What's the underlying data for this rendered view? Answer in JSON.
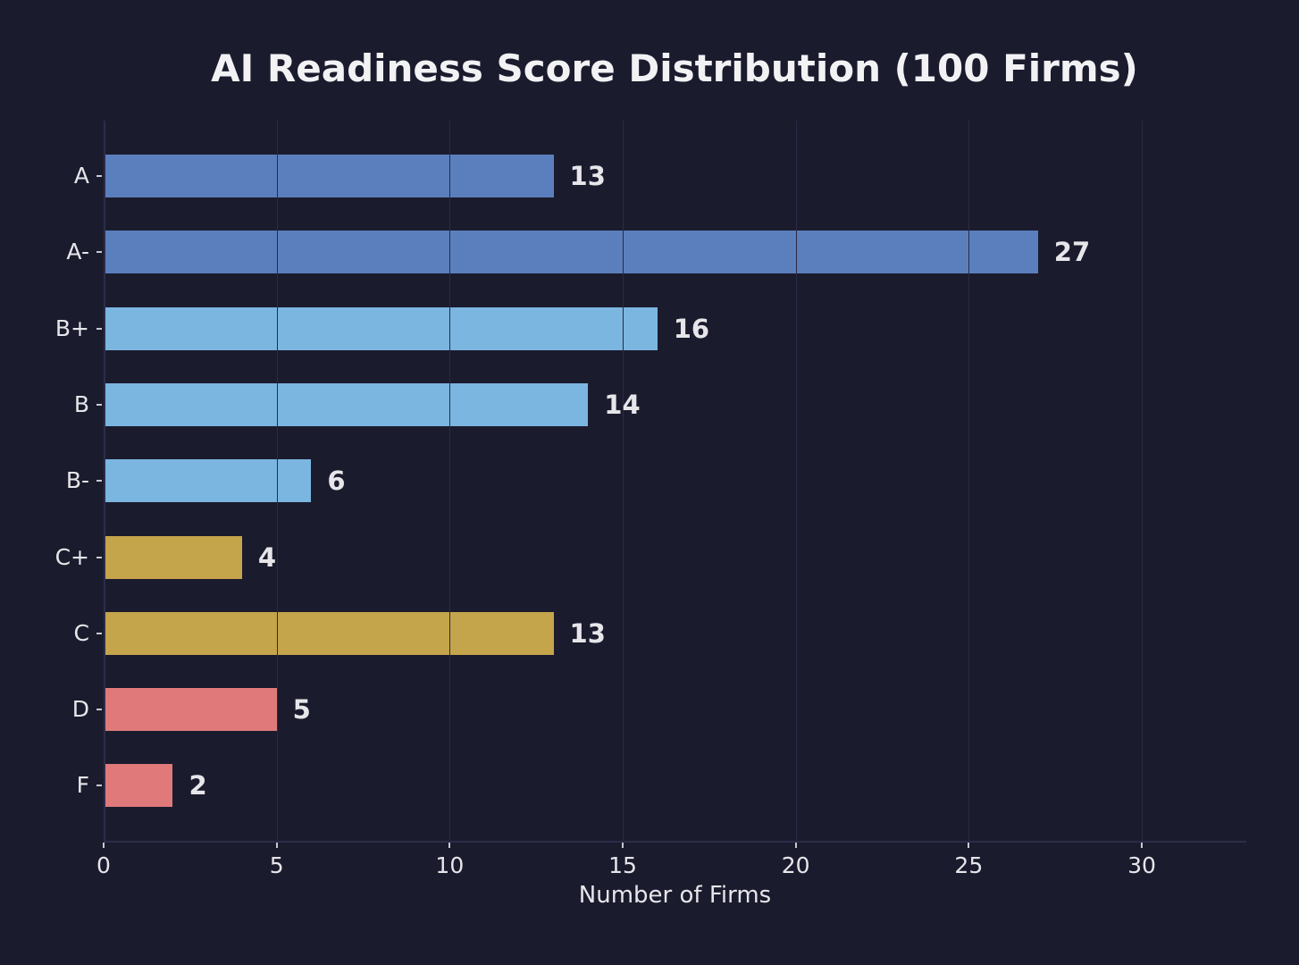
{
  "chart_data": {
    "type": "bar",
    "orientation": "horizontal",
    "title": "AI Readiness Score Distribution (100 Firms)",
    "xlabel": "Number of Firms",
    "ylabel": "",
    "categories": [
      "A",
      "A-",
      "B+",
      "B",
      "B-",
      "C+",
      "C",
      "D",
      "F"
    ],
    "values": [
      13,
      27,
      16,
      14,
      6,
      4,
      13,
      5,
      2
    ],
    "value_labels": [
      "13",
      "27",
      "16",
      "14",
      "6",
      "4",
      "13",
      "5",
      "2"
    ],
    "bar_colors": [
      "#5b7fbd",
      "#5b7fbd",
      "#7bb6e0",
      "#7bb6e0",
      "#7bb6e0",
      "#c4a54b",
      "#c4a54b",
      "#e07a7a",
      "#e07a7a"
    ],
    "xlim": [
      0,
      33
    ],
    "xticks": [
      0,
      5,
      10,
      15,
      20,
      25,
      30
    ],
    "xtick_labels": [
      "0",
      "5",
      "10",
      "15",
      "20",
      "25",
      "30"
    ],
    "grid": {
      "x": true,
      "y": false
    },
    "legend": null
  },
  "colors": {
    "background": "#1b1b2e",
    "text": "#e6e6ea",
    "grade_a": "#5b7fbd",
    "grade_b": "#7bb6e0",
    "grade_c": "#c4a54b",
    "grade_df": "#e07a7a"
  }
}
